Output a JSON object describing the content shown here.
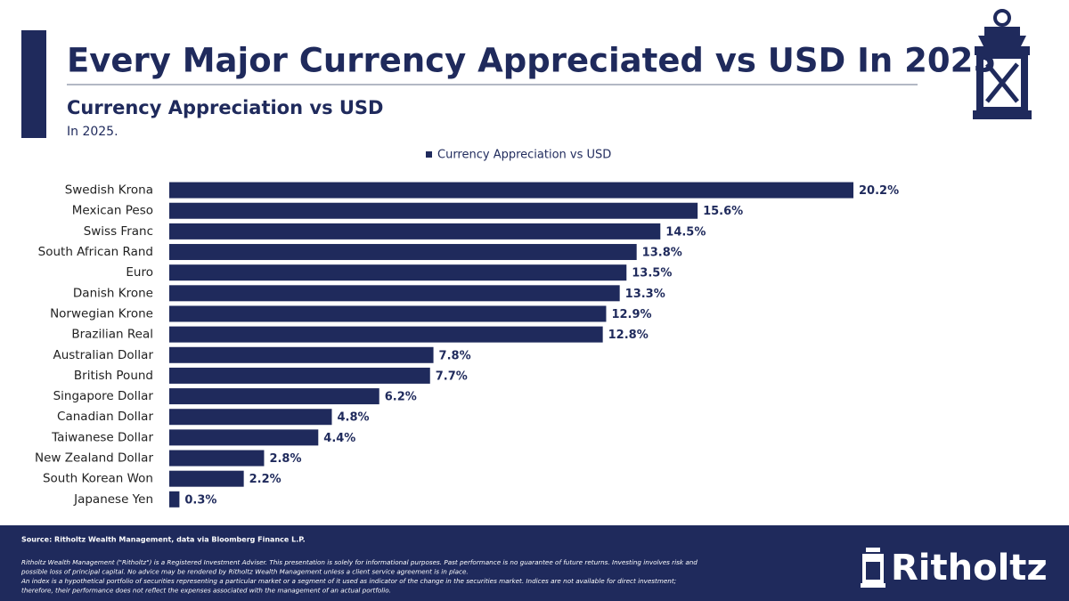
{
  "header": {
    "title": "Every Major Currency Appreciated vs USD In 2025"
  },
  "chart_data": {
    "type": "bar",
    "orientation": "horizontal",
    "title": "Currency Appreciation vs USD",
    "subtitle": "In 2025.",
    "categories": [
      "Swedish Krona",
      "Mexican Peso",
      "Swiss Franc",
      "South African Rand",
      "Euro",
      "Danish Krone",
      "Norwegian Krone",
      "Brazilian Real",
      "Australian Dollar",
      "British Pound",
      "Singapore Dollar",
      "Canadian Dollar",
      "Taiwanese Dollar",
      "New Zealand Dollar",
      "South Korean Won",
      "Japanese Yen"
    ],
    "series": [
      {
        "name": "Currency Appreciation vs USD",
        "color": "#1f2a5c",
        "values": [
          20.2,
          15.6,
          14.5,
          13.8,
          13.5,
          13.3,
          12.9,
          12.8,
          7.8,
          7.7,
          6.2,
          4.8,
          4.4,
          2.8,
          2.2,
          0.3
        ],
        "value_labels": [
          "20.2%",
          "15.6%",
          "14.5%",
          "13.8%",
          "13.5%",
          "13.3%",
          "12.9%",
          "12.8%",
          "7.8%",
          "7.7%",
          "6.2%",
          "4.8%",
          "4.4%",
          "2.8%",
          "2.2%",
          "0.3%"
        ]
      }
    ],
    "legend": "top"
  },
  "footer": {
    "source": "Source: Ritholtz Wealth Management, data via Bloomberg Finance L.P.",
    "disclaimer": [
      "Ritholtz Wealth Management (\"Ritholtz\") is a Registered Investment Adviser. This presentation is solely for informational purposes. Past performance is no guarantee of future returns. Investing involves risk and",
      "possible loss of principal capital. No advice may be rendered by Ritholtz Wealth Management unless a client service agreement is in place.",
      "An index is a hypothetical portfolio of securities representing a particular market or a segment of it used as indicator of the change in the securities market. Indices are not available for direct investment;",
      "therefore, their performance does not reflect the expenses associated with the management of an actual portfolio."
    ],
    "logo": "Ritholtz"
  }
}
